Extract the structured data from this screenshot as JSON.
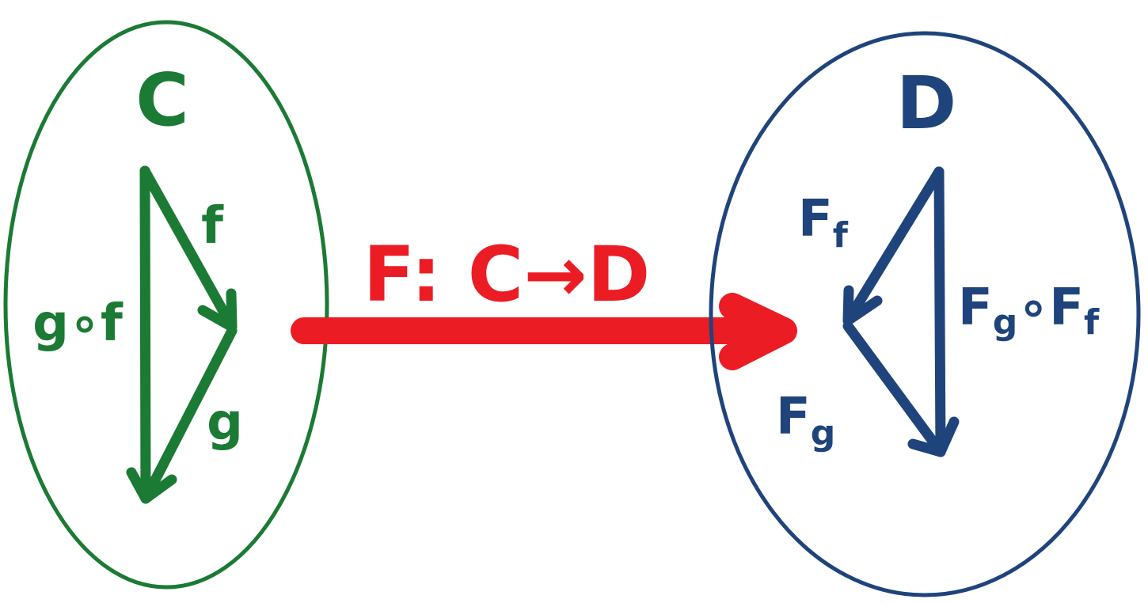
{
  "colors": {
    "source_category": "#1b7a34",
    "target_category": "#1f447c",
    "functor": "#ec1c24",
    "background": "#ffffff"
  },
  "source": {
    "name": "C",
    "morphisms": {
      "f": "f",
      "g": "g",
      "composite": "g∘f"
    }
  },
  "target": {
    "name": "D",
    "morphisms": {
      "Ff": {
        "main": "F",
        "sub": "f"
      },
      "Fg": {
        "main": "F",
        "sub": "g"
      },
      "composite": {
        "left_main": "F",
        "left_sub": "g",
        "op": "∘",
        "right_main": "F",
        "right_sub": "f"
      }
    }
  },
  "functor": {
    "label": "F: C→D"
  }
}
